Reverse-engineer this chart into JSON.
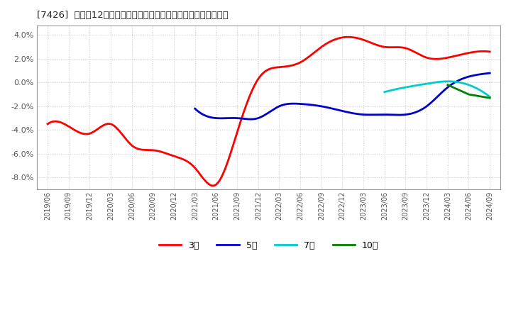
{
  "title": "[7426]  売上高12か月移動合計の対前年同期増減率の平均値の推移",
  "background_color": "#ffffff",
  "plot_background_color": "#ffffff",
  "grid_color": "#cccccc",
  "x_labels": [
    "2019/06",
    "2019/09",
    "2019/12",
    "2020/03",
    "2020/06",
    "2020/09",
    "2020/12",
    "2021/03",
    "2021/06",
    "2021/09",
    "2021/12",
    "2022/03",
    "2022/06",
    "2022/09",
    "2022/12",
    "2023/03",
    "2023/06",
    "2023/09",
    "2023/12",
    "2024/03",
    "2024/06",
    "2024/09"
  ],
  "series": {
    "3年": {
      "color": "#ff0000",
      "data": [
        [
          "2019/06",
          -0.035
        ],
        [
          "2019/09",
          -0.037
        ],
        [
          "2019/12",
          -0.043
        ],
        [
          "2020/03",
          -0.035
        ],
        [
          "2020/06",
          -0.053
        ],
        [
          "2020/09",
          -0.057
        ],
        [
          "2020/12",
          -0.062
        ],
        [
          "2021/03",
          -0.072
        ],
        [
          "2021/06",
          -0.086
        ],
        [
          "2021/09",
          -0.042
        ],
        [
          "2021/12",
          0.003
        ],
        [
          "2022/03",
          0.013
        ],
        [
          "2022/06",
          0.017
        ],
        [
          "2022/09",
          0.03
        ],
        [
          "2022/12",
          0.038
        ],
        [
          "2023/03",
          0.036
        ],
        [
          "2023/06",
          0.03
        ],
        [
          "2023/09",
          0.029
        ],
        [
          "2023/12",
          0.021
        ],
        [
          "2024/03",
          0.021
        ],
        [
          "2024/06",
          0.025
        ],
        [
          "2024/09",
          0.026
        ]
      ]
    },
    "5年": {
      "color": "#0000cc",
      "data": [
        [
          "2019/06",
          null
        ],
        [
          "2019/09",
          null
        ],
        [
          "2019/12",
          null
        ],
        [
          "2020/03",
          null
        ],
        [
          "2020/06",
          null
        ],
        [
          "2020/09",
          null
        ],
        [
          "2020/12",
          null
        ],
        [
          "2021/03",
          -0.022
        ],
        [
          "2021/06",
          -0.03
        ],
        [
          "2021/09",
          -0.03
        ],
        [
          "2021/12",
          -0.03
        ],
        [
          "2022/03",
          -0.02
        ],
        [
          "2022/06",
          -0.018
        ],
        [
          "2022/09",
          -0.02
        ],
        [
          "2022/12",
          -0.024
        ],
        [
          "2023/03",
          -0.027
        ],
        [
          "2023/06",
          -0.027
        ],
        [
          "2023/09",
          -0.027
        ],
        [
          "2023/12",
          -0.02
        ],
        [
          "2024/03",
          -0.004
        ],
        [
          "2024/06",
          0.005
        ],
        [
          "2024/09",
          0.008
        ]
      ]
    },
    "7年": {
      "color": "#00cccc",
      "data": [
        [
          "2019/06",
          null
        ],
        [
          "2019/09",
          null
        ],
        [
          "2019/12",
          null
        ],
        [
          "2020/03",
          null
        ],
        [
          "2020/06",
          null
        ],
        [
          "2020/09",
          null
        ],
        [
          "2020/12",
          null
        ],
        [
          "2021/03",
          null
        ],
        [
          "2021/06",
          null
        ],
        [
          "2021/09",
          null
        ],
        [
          "2021/12",
          null
        ],
        [
          "2022/03",
          null
        ],
        [
          "2022/06",
          null
        ],
        [
          "2022/09",
          null
        ],
        [
          "2022/12",
          null
        ],
        [
          "2023/03",
          null
        ],
        [
          "2023/06",
          -0.008
        ],
        [
          "2023/09",
          -0.004
        ],
        [
          "2023/12",
          -0.001
        ],
        [
          "2024/03",
          0.001
        ],
        [
          "2024/06",
          -0.002
        ],
        [
          "2024/09",
          -0.012
        ]
      ]
    },
    "10年": {
      "color": "#008000",
      "data": [
        [
          "2019/06",
          null
        ],
        [
          "2019/09",
          null
        ],
        [
          "2019/12",
          null
        ],
        [
          "2020/03",
          null
        ],
        [
          "2020/06",
          null
        ],
        [
          "2020/09",
          null
        ],
        [
          "2020/12",
          null
        ],
        [
          "2021/03",
          null
        ],
        [
          "2021/06",
          null
        ],
        [
          "2021/09",
          null
        ],
        [
          "2021/12",
          null
        ],
        [
          "2022/03",
          null
        ],
        [
          "2022/06",
          null
        ],
        [
          "2022/09",
          null
        ],
        [
          "2022/12",
          null
        ],
        [
          "2023/03",
          null
        ],
        [
          "2023/06",
          null
        ],
        [
          "2023/09",
          null
        ],
        [
          "2023/12",
          null
        ],
        [
          "2024/03",
          -0.002
        ],
        [
          "2024/06",
          -0.01
        ],
        [
          "2024/09",
          -0.013
        ]
      ]
    }
  },
  "ylim": [
    -0.09,
    0.048
  ],
  "yticks": [
    -0.08,
    -0.06,
    -0.04,
    -0.02,
    0.0,
    0.02,
    0.04
  ],
  "legend_labels": [
    "3年",
    "5年",
    "7年",
    "10年"
  ],
  "legend_colors": [
    "#ff0000",
    "#0000cc",
    "#00cccc",
    "#008000"
  ]
}
